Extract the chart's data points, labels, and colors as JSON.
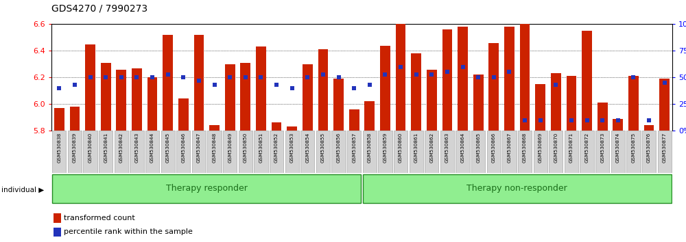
{
  "title": "GDS4270 / 7990273",
  "samples": [
    "GSM530838",
    "GSM530839",
    "GSM530840",
    "GSM530841",
    "GSM530842",
    "GSM530843",
    "GSM530844",
    "GSM530845",
    "GSM530846",
    "GSM530847",
    "GSM530848",
    "GSM530849",
    "GSM530850",
    "GSM530851",
    "GSM530852",
    "GSM530853",
    "GSM530854",
    "GSM530855",
    "GSM530856",
    "GSM530857",
    "GSM530858",
    "GSM530859",
    "GSM530860",
    "GSM530861",
    "GSM530862",
    "GSM530863",
    "GSM530864",
    "GSM530865",
    "GSM530866",
    "GSM530867",
    "GSM530868",
    "GSM530869",
    "GSM530870",
    "GSM530871",
    "GSM530872",
    "GSM530873",
    "GSM530874",
    "GSM530875",
    "GSM530876",
    "GSM530877"
  ],
  "bar_values": [
    5.97,
    5.98,
    6.45,
    6.31,
    6.26,
    6.27,
    6.2,
    6.52,
    6.04,
    6.52,
    5.84,
    6.3,
    6.31,
    6.43,
    5.86,
    5.83,
    6.3,
    6.41,
    6.19,
    5.96,
    6.02,
    6.44,
    6.64,
    6.38,
    6.26,
    6.56,
    6.58,
    6.22,
    6.46,
    6.58,
    6.65,
    6.15,
    6.23,
    6.21,
    6.55,
    6.01,
    5.89,
    6.21,
    5.84,
    6.19
  ],
  "percentile_values": [
    40,
    43,
    50,
    50,
    50,
    50,
    50,
    53,
    50,
    47,
    43,
    50,
    50,
    50,
    43,
    40,
    50,
    53,
    50,
    40,
    43,
    53,
    60,
    53,
    53,
    55,
    60,
    50,
    50,
    55,
    10,
    10,
    43,
    10,
    10,
    10,
    10,
    50,
    10,
    45
  ],
  "group_labels": [
    "Therapy responder",
    "Therapy non-responder"
  ],
  "group_sizes": [
    20,
    20
  ],
  "bar_color": "#CC2200",
  "dot_color": "#2233BB",
  "ymin": 5.8,
  "ymax": 6.6,
  "ylim_right": [
    0,
    100
  ],
  "yticks_left": [
    5.8,
    6.0,
    6.2,
    6.4,
    6.6
  ],
  "yticks_right": [
    0,
    25,
    50,
    75,
    100
  ],
  "bg_color": "#FFFFFF",
  "tick_label_bg": "#D3D3D3"
}
